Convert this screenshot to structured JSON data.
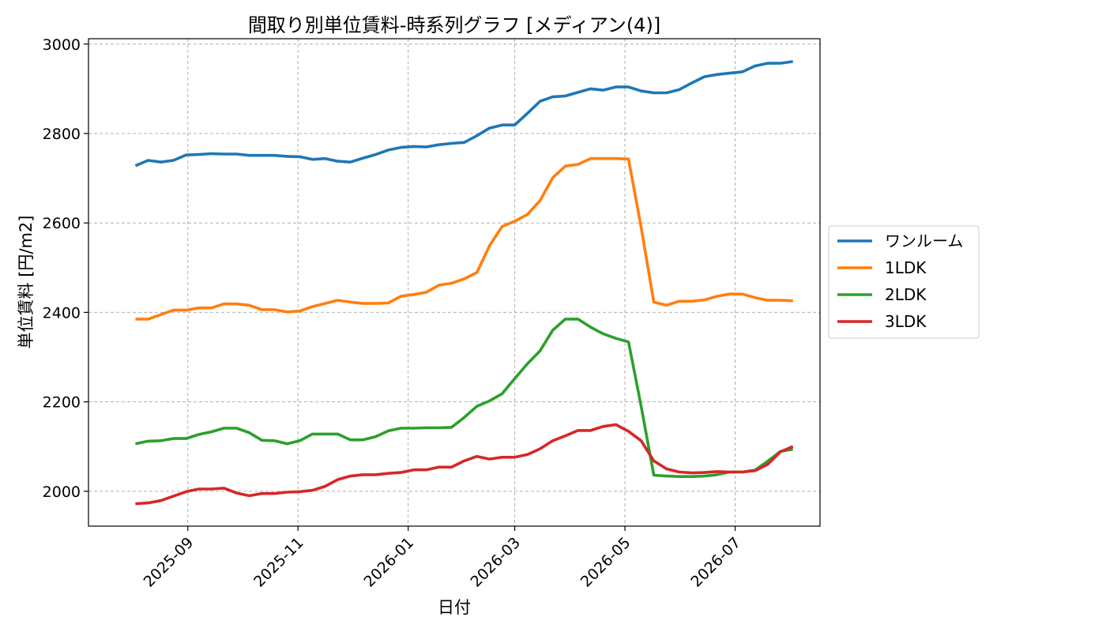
{
  "chart_data": {
    "type": "line",
    "title": "間取り別単位賃料-時系列グラフ [メディアン(4)]",
    "xlabel": "日付",
    "ylabel": "単位賃料 [円/m2]",
    "x_axis_type": "date",
    "xlim": [
      "2025-07-08",
      "2026-08-17"
    ],
    "ylim": [
      1922,
      3012
    ],
    "x_ticks": [
      "2025-09-01",
      "2025-11-01",
      "2026-01-01",
      "2026-03-01",
      "2026-05-01",
      "2026-07-01"
    ],
    "x_tick_labels": [
      "2025-09",
      "2025-11",
      "2026-01",
      "2026-03",
      "2026-05",
      "2026-07"
    ],
    "y_ticks": [
      2000,
      2200,
      2400,
      2600,
      2800,
      3000
    ],
    "y_tick_labels": [
      "2000",
      "2200",
      "2400",
      "2600",
      "2800",
      "3000"
    ],
    "grid": true,
    "legend_position": "outside-right",
    "x": [
      "2025-08-03",
      "2025-08-10",
      "2025-08-17",
      "2025-08-24",
      "2025-08-31",
      "2025-09-07",
      "2025-09-14",
      "2025-09-21",
      "2025-09-28",
      "2025-10-05",
      "2025-10-12",
      "2025-10-19",
      "2025-10-26",
      "2025-11-02",
      "2025-11-09",
      "2025-11-16",
      "2025-11-23",
      "2025-11-30",
      "2025-12-07",
      "2025-12-14",
      "2025-12-21",
      "2025-12-28",
      "2026-01-04",
      "2026-01-11",
      "2026-01-18",
      "2026-01-25",
      "2026-02-01",
      "2026-02-08",
      "2026-02-15",
      "2026-02-22",
      "2026-03-01",
      "2026-03-08",
      "2026-03-15",
      "2026-03-22",
      "2026-03-29",
      "2026-04-05",
      "2026-04-12",
      "2026-04-19",
      "2026-04-26",
      "2026-05-03",
      "2026-05-10",
      "2026-05-17",
      "2026-05-24",
      "2026-05-31",
      "2026-06-07",
      "2026-06-14",
      "2026-06-21",
      "2026-06-28",
      "2026-07-05",
      "2026-07-12",
      "2026-07-19",
      "2026-07-26",
      "2026-08-02"
    ],
    "series": [
      {
        "name": "ワンルーム",
        "color": "#1f77b4",
        "values": [
          2728,
          2740,
          2736,
          2740,
          2752,
          2753,
          2755,
          2754,
          2754,
          2751,
          2751,
          2751,
          2749,
          2748,
          2742,
          2744,
          2738,
          2736,
          2745,
          2753,
          2763,
          2769,
          2771,
          2770,
          2775,
          2778,
          2780,
          2795,
          2812,
          2819,
          2819,
          2845,
          2872,
          2882,
          2884,
          2892,
          2900,
          2897,
          2904,
          2904,
          2895,
          2891,
          2891,
          2898,
          2913,
          2927,
          2932,
          2935,
          2938,
          2951,
          2957,
          2957,
          2961
        ]
      },
      {
        "name": "1LDK",
        "color": "#ff7f0e",
        "values": [
          2385,
          2385,
          2395,
          2405,
          2405,
          2410,
          2410,
          2419,
          2419,
          2416,
          2406,
          2406,
          2401,
          2403,
          2413,
          2420,
          2427,
          2423,
          2420,
          2420,
          2421,
          2436,
          2440,
          2445,
          2461,
          2465,
          2475,
          2489,
          2549,
          2592,
          2604,
          2619,
          2650,
          2701,
          2727,
          2731,
          2744,
          2744,
          2744,
          2743,
          2590,
          2423,
          2416,
          2425,
          2425,
          2428,
          2436,
          2441,
          2441,
          2433,
          2427,
          2427,
          2426
        ]
      },
      {
        "name": "2LDK",
        "color": "#2ca02c",
        "values": [
          2106,
          2112,
          2113,
          2118,
          2118,
          2127,
          2133,
          2141,
          2141,
          2131,
          2114,
          2113,
          2106,
          2113,
          2128,
          2128,
          2128,
          2115,
          2115,
          2122,
          2135,
          2141,
          2141,
          2142,
          2142,
          2143,
          2165,
          2190,
          2202,
          2218,
          2252,
          2285,
          2314,
          2360,
          2385,
          2385,
          2367,
          2352,
          2342,
          2334,
          2190,
          2036,
          2034,
          2033,
          2033,
          2034,
          2037,
          2043,
          2043,
          2047,
          2067,
          2089,
          2094
        ]
      },
      {
        "name": "3LDK",
        "color": "#d62728",
        "values": [
          1972,
          1974,
          1979,
          1989,
          1999,
          2005,
          2005,
          2007,
          1996,
          1990,
          1995,
          1995,
          1998,
          1999,
          2002,
          2011,
          2026,
          2034,
          2037,
          2037,
          2040,
          2042,
          2048,
          2048,
          2054,
          2054,
          2068,
          2078,
          2072,
          2076,
          2076,
          2082,
          2095,
          2113,
          2124,
          2136,
          2136,
          2145,
          2149,
          2134,
          2113,
          2068,
          2050,
          2043,
          2041,
          2042,
          2044,
          2043,
          2043,
          2046,
          2060,
          2088,
          2100
        ]
      }
    ]
  }
}
